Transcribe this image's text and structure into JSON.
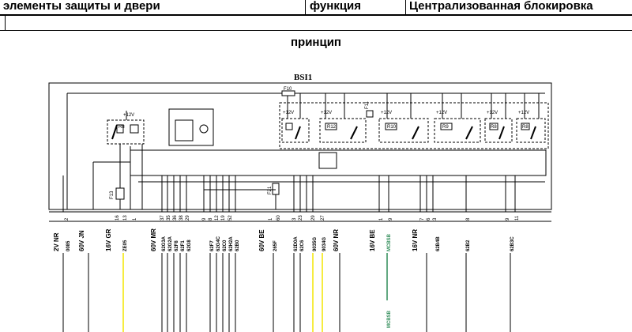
{
  "header": {
    "col1": "элементы защиты и двери",
    "col2": "функция",
    "col3": "Централизованная блокировка"
  },
  "subtitle": "принцип",
  "diagram": {
    "module": "BSI1",
    "fuses": [
      "F10",
      "F11",
      "F13",
      "F21"
    ],
    "relays": [
      "R8",
      "R12",
      "R10",
      "R9",
      "R8",
      "R8"
    ],
    "supply": "+12V",
    "connectors": [
      {
        "name": "2V NR",
        "pins": [
          {
            "pin": "2",
            "wire": "0085"
          }
        ]
      },
      {
        "name": "60V JN",
        "pins": []
      },
      {
        "name": "16V GR",
        "pins": [
          {
            "pin": "16",
            "wire": ""
          },
          {
            "pin": "13",
            "wire": "ZE05"
          },
          {
            "pin": "1",
            "wire": ""
          }
        ]
      },
      {
        "name": "60V MR",
        "pins": [
          {
            "pin": "37",
            "wire": "62G3A"
          },
          {
            "pin": "35",
            "wire": "62G2A"
          },
          {
            "pin": "36",
            "wire": "62F8"
          },
          {
            "pin": "38",
            "wire": "62F1"
          },
          {
            "pin": "29",
            "wire": "62G8"
          },
          {
            "pin": "9",
            "wire": "62F7"
          },
          {
            "pin": "8",
            "wire": "62G4C"
          },
          {
            "pin": "12",
            "wire": "62C0"
          },
          {
            "pin": "19",
            "wire": "62H2A"
          },
          {
            "pin": "52",
            "wire": "62B0"
          }
        ]
      },
      {
        "name": "60V BE",
        "pins": [
          {
            "pin": "1",
            "wire": "265F"
          },
          {
            "pin": "60",
            "wire": ""
          },
          {
            "pin": "3",
            "wire": "62D0A"
          },
          {
            "pin": "23",
            "wire": "62C6"
          },
          {
            "pin": "29",
            "wire": "9035G"
          },
          {
            "pin": "27",
            "wire": "9034G"
          }
        ]
      },
      {
        "name": "60V NR",
        "pins": []
      },
      {
        "name": "16V BE",
        "pins": [
          {
            "pin": "1",
            "wire": ""
          },
          {
            "pin": "9",
            "wire": "MCBSB"
          }
        ]
      },
      {
        "name": "16V NR",
        "pins": [
          {
            "pin": "7",
            "wire": ""
          },
          {
            "pin": "6",
            "wire": ""
          },
          {
            "pin": "3",
            "wire": "62B4B"
          },
          {
            "pin": "8",
            "wire": "62B2"
          },
          {
            "pin": "9",
            "wire": ""
          },
          {
            "pin": "11",
            "wire": "62B3C"
          }
        ]
      }
    ],
    "lower_label": "MCBSB"
  },
  "colors": {
    "line": "#000000",
    "wire_yellow": "#f2e600",
    "wire_green": "#2e8b57",
    "text_green": "#2e8b57"
  }
}
